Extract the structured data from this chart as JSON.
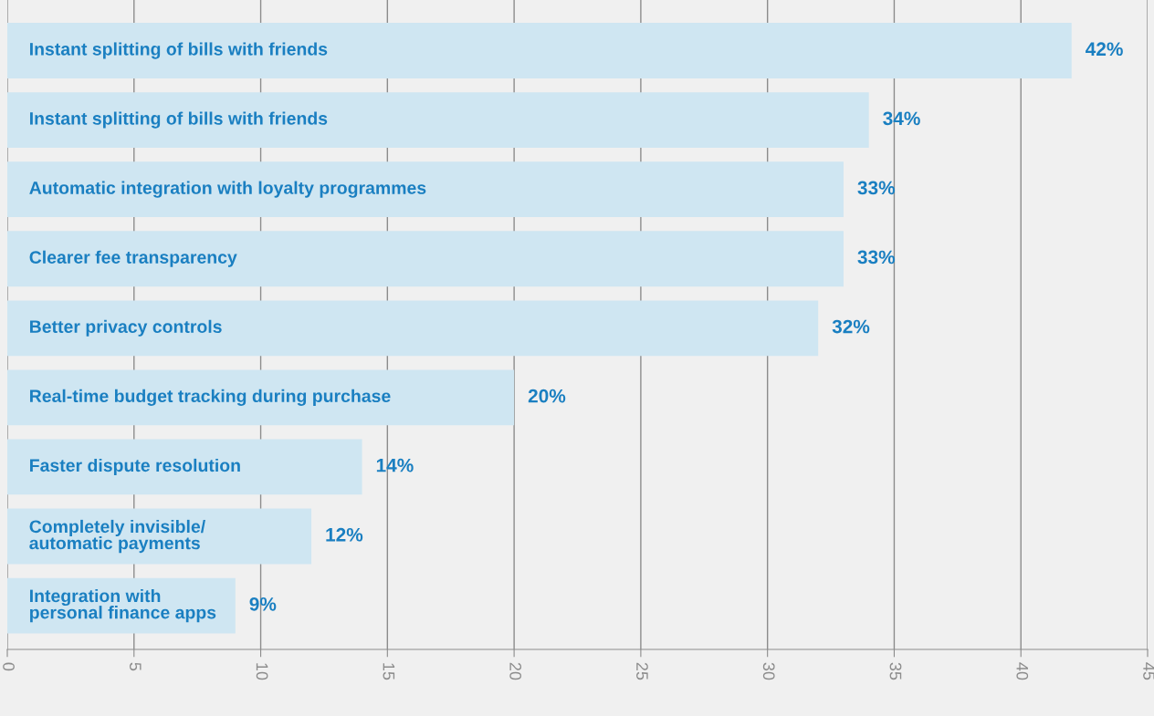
{
  "chart_data": {
    "type": "bar",
    "orientation": "horizontal",
    "categories": [
      "Instant splitting of bills with friends",
      "Instant splitting of bills with friends",
      "Automatic integration with loyalty programmes",
      "Clearer fee transparency",
      "Better privacy controls",
      "Real-time budget tracking during purchase",
      "Faster dispute resolution",
      "Completely invisible/\nautomatic payments",
      "Integration with\npersonal finance apps"
    ],
    "values": [
      42,
      34,
      33,
      33,
      32,
      20,
      14,
      12,
      9
    ],
    "value_labels": [
      "42%",
      "34%",
      "33%",
      "33%",
      "32%",
      "20%",
      "14%",
      "12%",
      "9%"
    ],
    "color": "#cfe6f2",
    "xlim": [
      0,
      45
    ],
    "xticks": [
      0,
      5,
      10,
      15,
      20,
      25,
      30,
      35,
      40,
      45
    ],
    "grid": "x",
    "tick_labels": "x"
  }
}
